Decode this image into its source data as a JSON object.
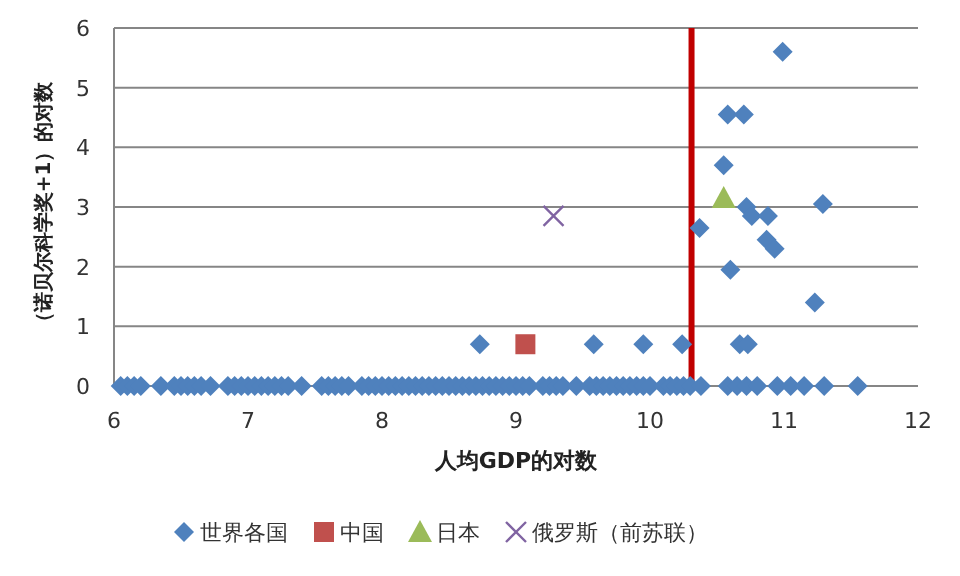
{
  "chart_data": {
    "type": "scatter",
    "xlabel": "人均GDP的对数",
    "ylabel": "（诺贝尔科学奖+1）的对数",
    "xlim": [
      6,
      12
    ],
    "ylim": [
      0,
      6
    ],
    "xticks": [
      6,
      7,
      8,
      9,
      10,
      11,
      12
    ],
    "yticks": [
      0,
      1,
      2,
      3,
      4,
      5,
      6
    ],
    "grid": "y",
    "legend": "bottom",
    "series": [
      {
        "name": "世界各国",
        "color": "#4f81bd",
        "marker": "diamond",
        "x": [
          6.05,
          6.1,
          6.15,
          6.2,
          6.35,
          6.45,
          6.5,
          6.55,
          6.6,
          6.65,
          6.72,
          6.85,
          6.9,
          6.95,
          7.0,
          7.05,
          7.1,
          7.15,
          7.2,
          7.25,
          7.3,
          7.4,
          7.55,
          7.6,
          7.65,
          7.7,
          7.75,
          7.85,
          7.9,
          7.95,
          8.0,
          8.05,
          8.1,
          8.15,
          8.2,
          8.25,
          8.3,
          8.35,
          8.4,
          8.45,
          8.5,
          8.55,
          8.6,
          8.65,
          8.7,
          8.75,
          8.8,
          8.85,
          8.9,
          8.95,
          9.0,
          9.05,
          9.1,
          9.2,
          9.25,
          9.3,
          9.35,
          9.45,
          9.55,
          9.6,
          9.65,
          9.7,
          9.75,
          9.8,
          9.85,
          9.9,
          9.95,
          10.0,
          10.1,
          10.15,
          10.2,
          10.25,
          10.3,
          10.38,
          10.58,
          10.65,
          10.72,
          10.8,
          10.95,
          11.05,
          11.15,
          11.3,
          11.55,
          8.73,
          9.58,
          9.95,
          10.24,
          10.67,
          10.73,
          10.99,
          10.58,
          10.7,
          10.55,
          10.37,
          10.72,
          10.76,
          10.88,
          10.87,
          10.93,
          11.29,
          10.6,
          11.23
        ],
        "values": [
          0,
          0,
          0,
          0,
          0,
          0,
          0,
          0,
          0,
          0,
          0,
          0,
          0,
          0,
          0,
          0,
          0,
          0,
          0,
          0,
          0,
          0,
          0,
          0,
          0,
          0,
          0,
          0,
          0,
          0,
          0,
          0,
          0,
          0,
          0,
          0,
          0,
          0,
          0,
          0,
          0,
          0,
          0,
          0,
          0,
          0,
          0,
          0,
          0,
          0,
          0,
          0,
          0,
          0,
          0,
          0,
          0,
          0,
          0,
          0,
          0,
          0,
          0,
          0,
          0,
          0,
          0,
          0,
          0,
          0,
          0,
          0,
          0,
          0,
          0,
          0,
          0,
          0,
          0,
          0,
          0,
          0,
          0,
          0.7,
          0.7,
          0.7,
          0.7,
          0.7,
          0.7,
          5.6,
          4.55,
          4.55,
          3.7,
          2.65,
          3.0,
          2.85,
          2.85,
          2.45,
          2.3,
          3.05,
          1.95,
          1.4
        ]
      },
      {
        "name": "中国",
        "color": "#c0504d",
        "marker": "square",
        "x": [
          9.07
        ],
        "values": [
          0.7
        ]
      },
      {
        "name": "日本",
        "color": "#9bbb59",
        "marker": "triangle",
        "x": [
          10.55
        ],
        "values": [
          3.15
        ]
      },
      {
        "name": "俄罗斯（前苏联）",
        "color": "#8064a2",
        "marker": "cross",
        "x": [
          9.28
        ],
        "values": [
          2.85
        ]
      }
    ],
    "ref_lines": [
      {
        "axis": "x",
        "value": 10.31,
        "color": "#c00000"
      }
    ]
  }
}
